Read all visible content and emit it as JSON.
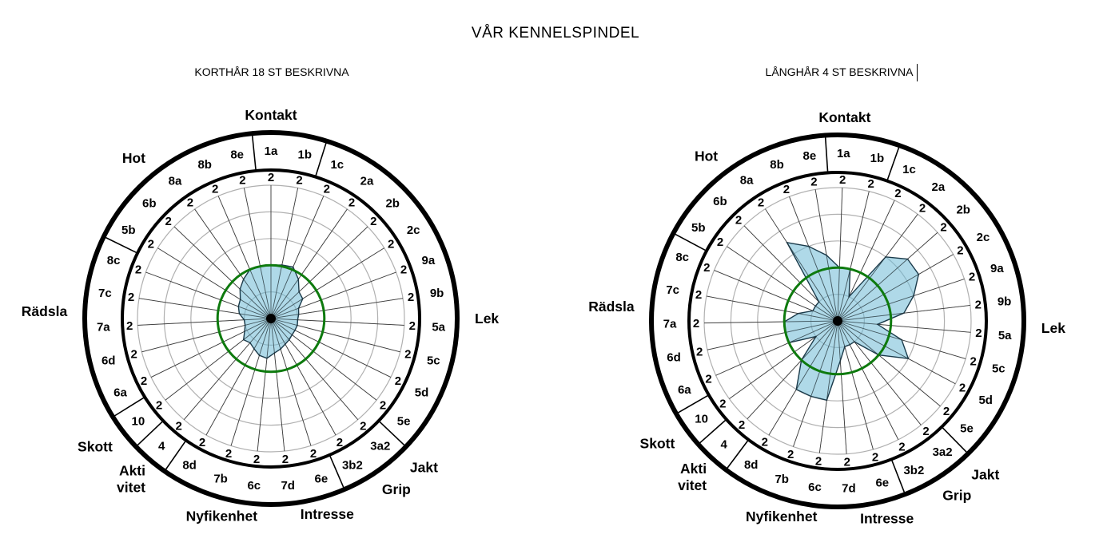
{
  "page": {
    "title": "VÅR KENNELSPINDEL"
  },
  "chart_data": [
    {
      "type": "radar",
      "title": "KORTHÅR 18 ST BESKRIVNA",
      "center": [
        339,
        284
      ],
      "rotation": 0,
      "codes": [
        "1a",
        "1b",
        "1c",
        "2a",
        "2b",
        "2c",
        "9a",
        "9b",
        "5a",
        "5c",
        "5d",
        "5e",
        "3a2",
        "3b2",
        "6e",
        "7d",
        "6c",
        "7b",
        "8d",
        "4",
        "10",
        "6a",
        "6d",
        "7a",
        "7c",
        "8c",
        "5b",
        "6b",
        "8a",
        "8b",
        "8e"
      ],
      "level_labels": [
        "2",
        "2",
        "2",
        "2",
        "2",
        "2",
        "2",
        "2",
        "2",
        "2",
        "2",
        "2",
        "2",
        "2",
        "2",
        "2",
        "2",
        "2",
        "2",
        "2",
        "2",
        "2",
        "2",
        "2",
        "2",
        "2",
        "2",
        "2",
        "2",
        "2",
        "2"
      ],
      "groups": [
        {
          "label": "Kontakt",
          "lines": [
            "Kontakt"
          ],
          "angle": 0
        },
        {
          "label": "Lek",
          "lines": [
            "Lek"
          ],
          "angle": 90
        },
        {
          "label": "Jakt",
          "lines": [
            "Jakt"
          ],
          "angle": 137
        },
        {
          "label": "Grip",
          "lines": [
            "Grip"
          ],
          "angle": 147
        },
        {
          "label": "Intresse",
          "lines": [
            "Intresse"
          ],
          "angle": 164
        },
        {
          "label": "Nyfikenhet",
          "lines": [
            "Nyfikenhet"
          ],
          "angle": 194
        },
        {
          "label": "Aktivitet",
          "lines": [
            "Akti",
            "vitet"
          ],
          "angle": 218
        },
        {
          "label": "Skott",
          "lines": [
            "Skott"
          ],
          "angle": 231
        },
        {
          "label": "Rädsla",
          "lines": [
            "Rädsla"
          ],
          "angle": 272
        },
        {
          "label": "Hot",
          "lines": [
            "Hot"
          ],
          "angle": 322
        }
      ],
      "values": [
        2.0,
        2.05,
        2.1,
        1.8,
        1.45,
        1.4,
        1.1,
        1.05,
        1.0,
        1.02,
        1.0,
        1.0,
        1.05,
        1.1,
        1.2,
        1.3,
        1.5,
        1.45,
        1.3,
        1.2,
        1.3,
        1.1,
        1.0,
        1.0,
        1.2,
        1.3,
        1.35,
        1.6,
        1.8,
        2.0,
        2.0
      ],
      "reference_value": 2.0,
      "rmax": 5
    },
    {
      "type": "radar",
      "title": "LÅNGHÅR 4 ST BESKRIVNA",
      "center": [
        338,
        287
      ],
      "rotation": 2,
      "codes": [
        "1a",
        "1b",
        "1c",
        "2a",
        "2b",
        "2c",
        "9a",
        "9b",
        "5a",
        "5c",
        "5d",
        "5e",
        "3a2",
        "3b2",
        "6e",
        "7d",
        "6c",
        "7b",
        "8d",
        "4",
        "10",
        "6a",
        "6d",
        "7a",
        "7c",
        "8c",
        "5b",
        "6b",
        "8a",
        "8b",
        "8e"
      ],
      "level_labels": [
        "2",
        "2",
        "2",
        "2",
        "2",
        "2",
        "2",
        "2",
        "2",
        "2",
        "2",
        "2",
        "2",
        "2",
        "2",
        "2",
        "2",
        "2",
        "2",
        "2",
        "2",
        "2",
        "2",
        "2",
        "2",
        "2",
        "2",
        "2",
        "2",
        "2",
        "2"
      ],
      "groups": [
        {
          "label": "Kontakt",
          "lines": [
            "Kontakt"
          ],
          "angle": 0
        },
        {
          "label": "Lek",
          "lines": [
            "Lek"
          ],
          "angle": 90
        },
        {
          "label": "Jakt",
          "lines": [
            "Jakt"
          ],
          "angle": 137
        },
        {
          "label": "Grip",
          "lines": [
            "Grip"
          ],
          "angle": 147
        },
        {
          "label": "Intresse",
          "lines": [
            "Intresse"
          ],
          "angle": 164
        },
        {
          "label": "Nyfikenhet",
          "lines": [
            "Nyfikenhet"
          ],
          "angle": 194
        },
        {
          "label": "Aktivitet",
          "lines": [
            "Akti",
            "vitet"
          ],
          "angle": 218
        },
        {
          "label": "Skott",
          "lines": [
            "Skott"
          ],
          "angle": 231
        },
        {
          "label": "Rädsla",
          "lines": [
            "Rädsla"
          ],
          "angle": 272
        },
        {
          "label": "Hot",
          "lines": [
            "Hot"
          ],
          "angle": 322
        }
      ],
      "values": [
        2.0,
        2.0,
        1.0,
        3.0,
        3.5,
        3.5,
        3.0,
        2.5,
        1.5,
        2.5,
        3.0,
        2.0,
        1.0,
        1.0,
        1.0,
        1.5,
        3.0,
        3.0,
        3.0,
        2.0,
        1.0,
        2.0,
        2.0,
        2.0,
        1.5,
        1.0,
        1.0,
        1.0,
        3.5,
        3.0,
        2.5
      ],
      "reference_value": 2.0,
      "rmax": 5
    }
  ]
}
